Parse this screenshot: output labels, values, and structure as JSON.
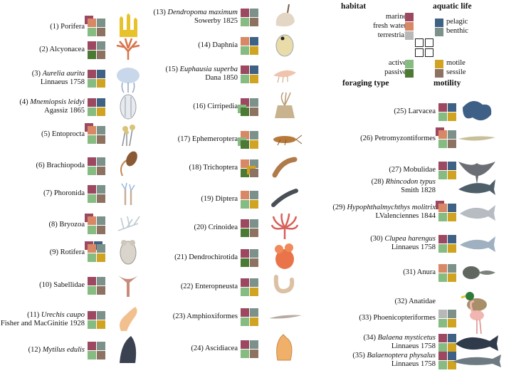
{
  "colors": {
    "marine": "#9c4860",
    "fresh_water": "#d98866",
    "terrestrial": "#b8b8b8",
    "pelagic": "#3f6284",
    "benthic": "#7b918a",
    "active": "#86bb82",
    "passive": "#4c7a35",
    "motile": "#d1a322",
    "sessile": "#8d7262"
  },
  "legend": {
    "habitat_title": "habitat",
    "aquatic_title": "aquatic life",
    "foraging_title": "foraging type",
    "motility_title": "motility",
    "marine": "marine",
    "fresh_water": "fresh water",
    "terrestrial": "terrestrial",
    "pelagic": "pelagic",
    "benthic": "benthic",
    "active": "active",
    "passive": "passive",
    "motile": "motile",
    "sessile": "sessile"
  },
  "taxa": [
    {
      "num": "(1)",
      "name": "Porifera",
      "italic": false,
      "author": "",
      "habitat": [
        "marine",
        "fresh_water"
      ],
      "aquatic": [
        "benthic"
      ],
      "foraging": [
        "active"
      ],
      "motility": [
        "sessile"
      ],
      "image": "sponge"
    },
    {
      "num": "(2)",
      "name": "Alcyonacea",
      "italic": false,
      "author": "",
      "habitat": [
        "marine"
      ],
      "aquatic": [
        "benthic"
      ],
      "foraging": [
        "passive"
      ],
      "motility": [
        "sessile"
      ],
      "image": "soft-coral"
    },
    {
      "num": "(3)",
      "name": "Aurelia aurita",
      "italic": true,
      "author": "Linnaeus 1758",
      "habitat": [
        "marine"
      ],
      "aquatic": [
        "pelagic"
      ],
      "foraging": [
        "active"
      ],
      "motility": [
        "motile"
      ],
      "image": "jellyfish"
    },
    {
      "num": "(4)",
      "name": "Mnemiopsis leidyi",
      "italic": true,
      "author": "Agassiz 1865",
      "habitat": [
        "marine"
      ],
      "aquatic": [
        "pelagic"
      ],
      "foraging": [
        "active"
      ],
      "motility": [
        "motile"
      ],
      "image": "comb-jelly"
    },
    {
      "num": "(5)",
      "name": "Entoprocta",
      "italic": false,
      "author": "",
      "habitat": [
        "marine",
        "fresh_water"
      ],
      "aquatic": [
        "benthic"
      ],
      "foraging": [
        "active"
      ],
      "motility": [
        "sessile"
      ],
      "image": "entoproct"
    },
    {
      "num": "(6)",
      "name": "Brachiopoda",
      "italic": false,
      "author": "",
      "habitat": [
        "marine"
      ],
      "aquatic": [
        "benthic"
      ],
      "foraging": [
        "active"
      ],
      "motility": [
        "sessile"
      ],
      "image": "brachiopod"
    },
    {
      "num": "(7)",
      "name": "Phoronida",
      "italic": false,
      "author": "",
      "habitat": [
        "marine"
      ],
      "aquatic": [
        "benthic"
      ],
      "foraging": [
        "active"
      ],
      "motility": [
        "sessile"
      ],
      "image": "phoronid"
    },
    {
      "num": "(8)",
      "name": "Bryozoa",
      "italic": false,
      "author": "",
      "habitat": [
        "marine",
        "fresh_water"
      ],
      "aquatic": [
        "benthic"
      ],
      "foraging": [
        "active"
      ],
      "motility": [
        "sessile"
      ],
      "image": "bryozoan"
    },
    {
      "num": "(9)",
      "name": "Rotifera",
      "italic": false,
      "author": "",
      "habitat": [
        "marine",
        "fresh_water"
      ],
      "aquatic": [
        "pelagic",
        "benthic"
      ],
      "foraging": [
        "active"
      ],
      "motility": [
        "motile"
      ],
      "image": "rotifer"
    },
    {
      "num": "(10)",
      "name": "Sabellidae",
      "italic": false,
      "author": "",
      "habitat": [
        "marine"
      ],
      "aquatic": [
        "benthic"
      ],
      "foraging": [
        "active"
      ],
      "motility": [
        "sessile"
      ],
      "image": "fanworm"
    },
    {
      "num": "(11)",
      "name": "Urechis caupo",
      "italic": true,
      "author": "Fisher and MacGinitie 1928",
      "habitat": [
        "marine"
      ],
      "aquatic": [
        "benthic"
      ],
      "foraging": [
        "active"
      ],
      "motility": [
        "motile"
      ],
      "image": "spoonworm"
    },
    {
      "num": "(12)",
      "name": "Mytilus edulis",
      "italic": true,
      "author": "",
      "habitat": [
        "marine"
      ],
      "aquatic": [
        "benthic"
      ],
      "foraging": [
        "active"
      ],
      "motility": [
        "sessile"
      ],
      "image": "mussel"
    },
    {
      "num": "(13)",
      "name": "Dendropoma maximum",
      "italic": true,
      "author": "Sowerby 1825",
      "habitat": [
        "marine"
      ],
      "aquatic": [
        "benthic"
      ],
      "foraging": [
        "active"
      ],
      "motility": [
        "sessile"
      ],
      "image": "vermetid"
    },
    {
      "num": "(14)",
      "name": "Daphnia",
      "italic": false,
      "author": "",
      "habitat": [
        "fresh_water"
      ],
      "aquatic": [
        "pelagic"
      ],
      "foraging": [
        "active"
      ],
      "motility": [
        "motile"
      ],
      "image": "daphnia"
    },
    {
      "num": "(15)",
      "name": "Euphausia superba",
      "italic": true,
      "author": "Dana 1850",
      "habitat": [
        "marine"
      ],
      "aquatic": [
        "pelagic"
      ],
      "foraging": [
        "active"
      ],
      "motility": [
        "motile"
      ],
      "image": "krill"
    },
    {
      "num": "(16)",
      "name": "Cirripedia",
      "italic": false,
      "author": "",
      "habitat": [
        "marine"
      ],
      "aquatic": [
        "benthic"
      ],
      "foraging": [
        "active",
        "passive"
      ],
      "motility": [
        "sessile"
      ],
      "image": "barnacle"
    },
    {
      "num": "(17)",
      "name": "Ephemeroptera",
      "italic": false,
      "author": "",
      "habitat": [
        "fresh_water"
      ],
      "aquatic": [
        "benthic"
      ],
      "foraging": [
        "active",
        "passive"
      ],
      "motility": [
        "motile"
      ],
      "image": "mayfly-larva"
    },
    {
      "num": "(18)",
      "name": "Trichoptera",
      "italic": false,
      "author": "",
      "habitat": [
        "fresh_water"
      ],
      "aquatic": [
        "benthic"
      ],
      "foraging": [
        "passive"
      ],
      "motility": [
        "motile",
        "sessile"
      ],
      "image": "caddisfly-larva"
    },
    {
      "num": "(19)",
      "name": "Diptera",
      "italic": false,
      "author": "",
      "habitat": [
        "fresh_water"
      ],
      "aquatic": [
        "benthic"
      ],
      "foraging": [
        "active"
      ],
      "motility": [
        "motile"
      ],
      "image": "fly-larva"
    },
    {
      "num": "(20)",
      "name": "Crinoidea",
      "italic": false,
      "author": "",
      "habitat": [
        "marine"
      ],
      "aquatic": [
        "benthic"
      ],
      "foraging": [
        "passive"
      ],
      "motility": [
        "sessile"
      ],
      "image": "crinoid"
    },
    {
      "num": "(21)",
      "name": "Dendrochirotida",
      "italic": false,
      "author": "",
      "habitat": [
        "marine"
      ],
      "aquatic": [
        "benthic"
      ],
      "foraging": [
        "passive"
      ],
      "motility": [
        "sessile"
      ],
      "image": "sea-cucumber"
    },
    {
      "num": "(22)",
      "name": "Enteropneusta",
      "italic": false,
      "author": "",
      "habitat": [
        "marine"
      ],
      "aquatic": [
        "benthic"
      ],
      "foraging": [
        "active"
      ],
      "motility": [
        "motile"
      ],
      "image": "acorn-worm"
    },
    {
      "num": "(23)",
      "name": "Amphioxiformes",
      "italic": false,
      "author": "",
      "habitat": [
        "marine"
      ],
      "aquatic": [
        "benthic"
      ],
      "foraging": [
        "active"
      ],
      "motility": [
        "motile"
      ],
      "image": "lancelet"
    },
    {
      "num": "(24)",
      "name": "Ascidiacea",
      "italic": false,
      "author": "",
      "habitat": [
        "marine"
      ],
      "aquatic": [
        "benthic"
      ],
      "foraging": [
        "active"
      ],
      "motility": [
        "sessile"
      ],
      "image": "sea-squirt"
    },
    {
      "num": "(25)",
      "name": "Larvacea",
      "italic": false,
      "author": "",
      "habitat": [
        "marine"
      ],
      "aquatic": [
        "pelagic"
      ],
      "foraging": [
        "active"
      ],
      "motility": [
        "motile"
      ],
      "image": "larvacean"
    },
    {
      "num": "(26)",
      "name": "Petromyzontiformes",
      "italic": false,
      "author": "",
      "habitat": [
        "marine",
        "fresh_water"
      ],
      "aquatic": [
        "benthic"
      ],
      "foraging": [
        "active"
      ],
      "motility": [
        "sessile"
      ],
      "image": "lamprey-larva"
    },
    {
      "num": "(27)",
      "name": "Mobulidae",
      "italic": false,
      "author": "",
      "habitat": [
        "marine"
      ],
      "aquatic": [
        "pelagic"
      ],
      "foraging": [
        "active"
      ],
      "motility": [
        "motile"
      ],
      "image": "manta-ray"
    },
    {
      "num": "(28)",
      "name": "Rhincodon typus",
      "italic": true,
      "author": "Smith 1828",
      "habitat": [],
      "aquatic": [],
      "foraging": [],
      "motility": [],
      "image": "whale-shark"
    },
    {
      "num": "(29)",
      "name": "Hypophthalmychthys molitrix",
      "italic": true,
      "author": "LValenciennes 1844",
      "habitat": [
        "marine",
        "fresh_water"
      ],
      "aquatic": [
        "pelagic"
      ],
      "foraging": [
        "active"
      ],
      "motility": [
        "motile"
      ],
      "image": "silver-carp"
    },
    {
      "num": "(30)",
      "name": "Clupea harengus",
      "italic": true,
      "author": "Linnaeus 1758",
      "habitat": [
        "marine"
      ],
      "aquatic": [
        "pelagic"
      ],
      "foraging": [
        "active"
      ],
      "motility": [
        "motile"
      ],
      "image": "herring"
    },
    {
      "num": "(31)",
      "name": "Anura",
      "italic": false,
      "author": "",
      "habitat": [
        "fresh_water"
      ],
      "aquatic": [
        "benthic"
      ],
      "foraging": [
        "active"
      ],
      "motility": [
        "motile"
      ],
      "image": "tadpole"
    },
    {
      "num": "(32)",
      "name": "Anatidae",
      "italic": false,
      "author": "",
      "habitat": [],
      "aquatic": [],
      "foraging": [],
      "motility": [],
      "image": "duck"
    },
    {
      "num": "(33)",
      "name": "Phoenicopteriformes",
      "italic": false,
      "author": "",
      "habitat": [
        "terrestrial"
      ],
      "aquatic": [
        "benthic"
      ],
      "foraging": [
        "active"
      ],
      "motility": [
        "motile"
      ],
      "image": "flamingo"
    },
    {
      "num": "(34)",
      "name": "Balaena mysticetus",
      "italic": true,
      "author": "Linnaeus 1758",
      "habitat": [
        "marine"
      ],
      "aquatic": [
        "pelagic"
      ],
      "foraging": [
        "active"
      ],
      "motility": [
        "motile"
      ],
      "image": "bowhead-whale"
    },
    {
      "num": "(35)",
      "name": "Balaenoptera physalus",
      "italic": true,
      "author": "Linnaeus 1758",
      "habitat": [
        "marine"
      ],
      "aquatic": [
        "pelagic"
      ],
      "foraging": [
        "active"
      ],
      "motility": [
        "motile"
      ],
      "image": "fin-whale"
    }
  ]
}
